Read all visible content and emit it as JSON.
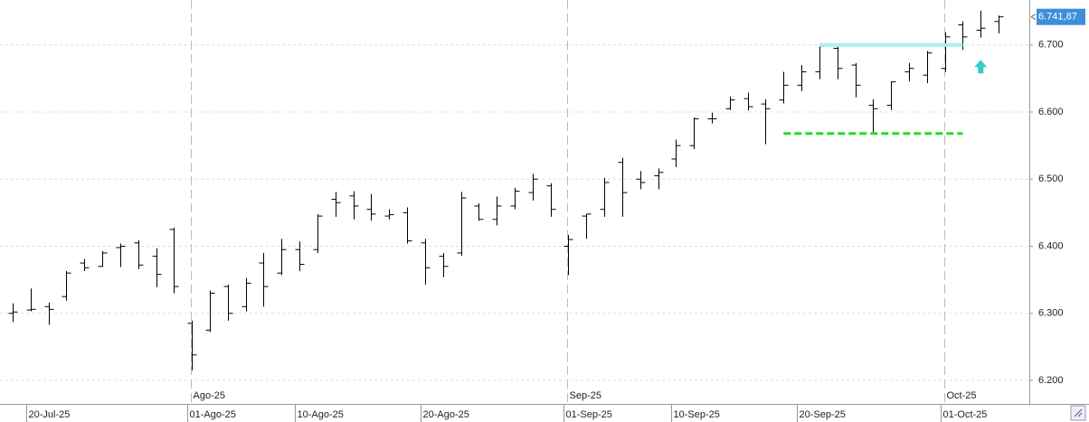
{
  "chart_data": {
    "type": "ohlc",
    "color": "#000000",
    "categories": [
      null,
      "20-Jul-25",
      null,
      null,
      null,
      null,
      null,
      null,
      null,
      null,
      "01-Ago-25",
      null,
      null,
      null,
      null,
      null,
      "10-Ago-25",
      null,
      null,
      null,
      null,
      null,
      null,
      "20-Ago-25",
      null,
      null,
      null,
      null,
      null,
      null,
      null,
      "01-Sep-25",
      null,
      null,
      null,
      null,
      null,
      "10-Sep-25",
      null,
      null,
      null,
      null,
      null,
      null,
      "20-Sep-25",
      null,
      null,
      null,
      null,
      null,
      null,
      null,
      "01-Oct-25",
      null,
      null,
      null
    ],
    "period_labels": [
      null,
      null,
      null,
      null,
      null,
      null,
      null,
      null,
      null,
      null,
      "Ago-25",
      null,
      null,
      null,
      null,
      null,
      null,
      null,
      null,
      null,
      null,
      null,
      null,
      null,
      null,
      null,
      null,
      null,
      null,
      null,
      null,
      "Sep-25",
      null,
      null,
      null,
      null,
      null,
      null,
      null,
      null,
      null,
      null,
      null,
      null,
      null,
      null,
      null,
      null,
      null,
      null,
      null,
      null,
      "Oct-25",
      null,
      null,
      null
    ],
    "open": [
      6300,
      6305,
      6310,
      6325,
      6375,
      6370,
      6398,
      6405,
      6385,
      6425,
      6285,
      6275,
      6340,
      6310,
      6375,
      6360,
      6395,
      6395,
      6470,
      6475,
      6455,
      6445,
      6450,
      6405,
      6385,
      6390,
      6460,
      6440,
      6460,
      6480,
      6490,
      6400,
      6445,
      6455,
      6525,
      6500,
      6505,
      6530,
      6550,
      6590,
      6605,
      6620,
      6612,
      6618,
      6640,
      6660,
      6695,
      6670,
      6610,
      6610,
      6660,
      6655,
      6665,
      6730,
      6722,
      6735
    ],
    "high": [
      6315,
      6337,
      6316,
      6363,
      6381,
      6393,
      6404,
      6409,
      6397,
      6428,
      6289,
      6334,
      6343,
      6353,
      6390,
      6411,
      6407,
      6448,
      6481,
      6482,
      6478,
      6455,
      6458,
      6411,
      6390,
      6481,
      6464,
      6474,
      6487,
      6508,
      6494,
      6417,
      6448,
      6502,
      6532,
      6512,
      6516,
      6559,
      6592,
      6599,
      6623,
      6629,
      6619,
      6660,
      6670,
      6700,
      6700,
      6673,
      6619,
      6646,
      6673,
      6691,
      6719,
      6735,
      6751,
      6744
    ],
    "low": [
      6287,
      6303,
      6283,
      6319,
      6363,
      6369,
      6369,
      6366,
      6339,
      6330,
      6215,
      6272,
      6289,
      6303,
      6310,
      6357,
      6363,
      6390,
      6444,
      6440,
      6438,
      6440,
      6404,
      6343,
      6354,
      6386,
      6438,
      6431,
      6455,
      6468,
      6444,
      6357,
      6411,
      6444,
      6444,
      6485,
      6485,
      6518,
      6545,
      6583,
      6603,
      6602,
      6552,
      6613,
      6631,
      6649,
      6649,
      6622,
      6568,
      6603,
      6646,
      6643,
      6660,
      6693,
      6711,
      6717
    ],
    "close": [
      6302,
      6306,
      6306,
      6360,
      6368,
      6390,
      6400,
      6372,
      6358,
      6340,
      6238,
      6330,
      6300,
      6345,
      6340,
      6395,
      6373,
      6445,
      6465,
      6460,
      6448,
      6447,
      6408,
      6368,
      6370,
      6472,
      6440,
      6460,
      6482,
      6500,
      6455,
      6410,
      6448,
      6495,
      6480,
      6495,
      6510,
      6550,
      6590,
      6590,
      6618,
      6608,
      6605,
      6640,
      6660,
      6698,
      6665,
      6640,
      6605,
      6645,
      6665,
      6688,
      6712,
      6712,
      6725,
      6741.87
    ],
    "ylim": [
      6165,
      6767
    ],
    "yticks": [
      {
        "value": 6200,
        "label": "6.200"
      },
      {
        "value": 6300,
        "label": "6.300"
      },
      {
        "value": 6400,
        "label": "6.400"
      },
      {
        "value": 6500,
        "label": "6.500"
      },
      {
        "value": 6600,
        "label": "6.600"
      },
      {
        "value": 6700,
        "label": "6.700"
      }
    ],
    "grid": true,
    "last_price": {
      "value": 6741.87,
      "label": "6.741,87",
      "color": "#3d8fd9"
    },
    "support_line": {
      "value": 6568,
      "from": 43,
      "to": 53,
      "color": "#22dd22"
    },
    "resistance_line": {
      "value": 6700,
      "from": 45,
      "to": 53,
      "color": "#a8f0f4"
    },
    "arrow": {
      "value": 6667,
      "at": 54,
      "color": "#33cccc"
    }
  }
}
